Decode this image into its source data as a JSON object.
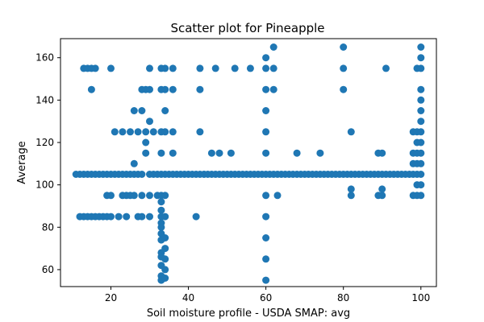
{
  "chart_data": {
    "type": "scatter",
    "title": "Scatter plot for Pineapple",
    "xlabel": "Soil moisture profile - USDA SMAP: avg",
    "ylabel": "Average",
    "xlim": [
      7,
      104
    ],
    "ylim": [
      52,
      169
    ],
    "xticks": [
      20,
      40,
      60,
      80,
      100
    ],
    "yticks": [
      60,
      80,
      100,
      120,
      140,
      160
    ],
    "grid": false,
    "marker_color": "#1f77b4",
    "points": [
      [
        11,
        105
      ],
      [
        12,
        105
      ],
      [
        12,
        85
      ],
      [
        13,
        85
      ],
      [
        13,
        105
      ],
      [
        13,
        155
      ],
      [
        14,
        155
      ],
      [
        14,
        85
      ],
      [
        14,
        105
      ],
      [
        15,
        155
      ],
      [
        15,
        145
      ],
      [
        15,
        105
      ],
      [
        15,
        85
      ],
      [
        16,
        155
      ],
      [
        16,
        85
      ],
      [
        16,
        105
      ],
      [
        17,
        85
      ],
      [
        17,
        105
      ],
      [
        18,
        85
      ],
      [
        18,
        105
      ],
      [
        19,
        105
      ],
      [
        19,
        95
      ],
      [
        19,
        85
      ],
      [
        20,
        155
      ],
      [
        20,
        95
      ],
      [
        20,
        105
      ],
      [
        20,
        85
      ],
      [
        21,
        105
      ],
      [
        21,
        125
      ],
      [
        22,
        105
      ],
      [
        22,
        85
      ],
      [
        23,
        125
      ],
      [
        23,
        105
      ],
      [
        23,
        95
      ],
      [
        24,
        105
      ],
      [
        24,
        85
      ],
      [
        24,
        95
      ],
      [
        25,
        105
      ],
      [
        25,
        95
      ],
      [
        25,
        125
      ],
      [
        26,
        110
      ],
      [
        26,
        135
      ],
      [
        26,
        95
      ],
      [
        26,
        105
      ],
      [
        27,
        105
      ],
      [
        27,
        85
      ],
      [
        27,
        125
      ],
      [
        28,
        145
      ],
      [
        28,
        135
      ],
      [
        28,
        85
      ],
      [
        28,
        105
      ],
      [
        28,
        95
      ],
      [
        29,
        145
      ],
      [
        29,
        120
      ],
      [
        29,
        125
      ],
      [
        29,
        115
      ],
      [
        30,
        155
      ],
      [
        30,
        145
      ],
      [
        30,
        130
      ],
      [
        30,
        105
      ],
      [
        30,
        95
      ],
      [
        30,
        85
      ],
      [
        31,
        105
      ],
      [
        31,
        125
      ],
      [
        32,
        105
      ],
      [
        32,
        95
      ],
      [
        33,
        155
      ],
      [
        33,
        145
      ],
      [
        33,
        125
      ],
      [
        33,
        115
      ],
      [
        33,
        105
      ],
      [
        33,
        95
      ],
      [
        33,
        92
      ],
      [
        33,
        88
      ],
      [
        33,
        85
      ],
      [
        33,
        82
      ],
      [
        33,
        80
      ],
      [
        33,
        77
      ],
      [
        33,
        74
      ],
      [
        33,
        68
      ],
      [
        33,
        66
      ],
      [
        33,
        62
      ],
      [
        33,
        57
      ],
      [
        33,
        55
      ],
      [
        34,
        155
      ],
      [
        34,
        145
      ],
      [
        34,
        135
      ],
      [
        34,
        125
      ],
      [
        34,
        105
      ],
      [
        34,
        95
      ],
      [
        34,
        85
      ],
      [
        34,
        75
      ],
      [
        34,
        70
      ],
      [
        34,
        65
      ],
      [
        34,
        60
      ],
      [
        34,
        56
      ],
      [
        35,
        105
      ],
      [
        36,
        155
      ],
      [
        36,
        145
      ],
      [
        36,
        125
      ],
      [
        36,
        115
      ],
      [
        36,
        105
      ],
      [
        37,
        105
      ],
      [
        38,
        105
      ],
      [
        39,
        105
      ],
      [
        40,
        105
      ],
      [
        41,
        105
      ],
      [
        42,
        85
      ],
      [
        42,
        105
      ],
      [
        43,
        155
      ],
      [
        43,
        145
      ],
      [
        43,
        125
      ],
      [
        43,
        105
      ],
      [
        44,
        105
      ],
      [
        45,
        105
      ],
      [
        46,
        115
      ],
      [
        46,
        105
      ],
      [
        47,
        105
      ],
      [
        47,
        155
      ],
      [
        48,
        115
      ],
      [
        48,
        105
      ],
      [
        49,
        105
      ],
      [
        50,
        105
      ],
      [
        51,
        105
      ],
      [
        51,
        115
      ],
      [
        52,
        105
      ],
      [
        52,
        155
      ],
      [
        53,
        105
      ],
      [
        54,
        105
      ],
      [
        55,
        105
      ],
      [
        56,
        155
      ],
      [
        56,
        105
      ],
      [
        57,
        105
      ],
      [
        58,
        105
      ],
      [
        59,
        105
      ],
      [
        60,
        160
      ],
      [
        60,
        155
      ],
      [
        60,
        145
      ],
      [
        60,
        135
      ],
      [
        60,
        125
      ],
      [
        60,
        115
      ],
      [
        60,
        105
      ],
      [
        60,
        95
      ],
      [
        60,
        85
      ],
      [
        60,
        75
      ],
      [
        60,
        65
      ],
      [
        60,
        55
      ],
      [
        61,
        105
      ],
      [
        62,
        165
      ],
      [
        62,
        145
      ],
      [
        62,
        155
      ],
      [
        62,
        105
      ],
      [
        63,
        95
      ],
      [
        63,
        105
      ],
      [
        64,
        105
      ],
      [
        65,
        105
      ],
      [
        66,
        105
      ],
      [
        67,
        105
      ],
      [
        68,
        115
      ],
      [
        68,
        105
      ],
      [
        69,
        105
      ],
      [
        70,
        105
      ],
      [
        71,
        105
      ],
      [
        72,
        105
      ],
      [
        73,
        105
      ],
      [
        74,
        105
      ],
      [
        74,
        115
      ],
      [
        75,
        105
      ],
      [
        76,
        105
      ],
      [
        77,
        105
      ],
      [
        78,
        105
      ],
      [
        79,
        105
      ],
      [
        80,
        165
      ],
      [
        80,
        155
      ],
      [
        80,
        145
      ],
      [
        80,
        105
      ],
      [
        81,
        105
      ],
      [
        82,
        105
      ],
      [
        82,
        125
      ],
      [
        82,
        95
      ],
      [
        82,
        98
      ],
      [
        83,
        105
      ],
      [
        84,
        105
      ],
      [
        85,
        105
      ],
      [
        86,
        105
      ],
      [
        87,
        105
      ],
      [
        88,
        105
      ],
      [
        89,
        105
      ],
      [
        89,
        115
      ],
      [
        89,
        95
      ],
      [
        90,
        115
      ],
      [
        90,
        105
      ],
      [
        90,
        95
      ],
      [
        90,
        98
      ],
      [
        91,
        155
      ],
      [
        91,
        105
      ],
      [
        92,
        105
      ],
      [
        93,
        105
      ],
      [
        94,
        105
      ],
      [
        95,
        105
      ],
      [
        96,
        105
      ],
      [
        97,
        105
      ],
      [
        98,
        105
      ],
      [
        98,
        125
      ],
      [
        98,
        115
      ],
      [
        98,
        110
      ],
      [
        98,
        95
      ],
      [
        99,
        155
      ],
      [
        99,
        125
      ],
      [
        99,
        120
      ],
      [
        99,
        115
      ],
      [
        99,
        110
      ],
      [
        99,
        105
      ],
      [
        99,
        100
      ],
      [
        99,
        95
      ],
      [
        100,
        165
      ],
      [
        100,
        160
      ],
      [
        100,
        155
      ],
      [
        100,
        145
      ],
      [
        100,
        140
      ],
      [
        100,
        135
      ],
      [
        100,
        130
      ],
      [
        100,
        125
      ],
      [
        100,
        120
      ],
      [
        100,
        115
      ],
      [
        100,
        110
      ],
      [
        100,
        105
      ],
      [
        100,
        100
      ],
      [
        100,
        95
      ]
    ]
  }
}
